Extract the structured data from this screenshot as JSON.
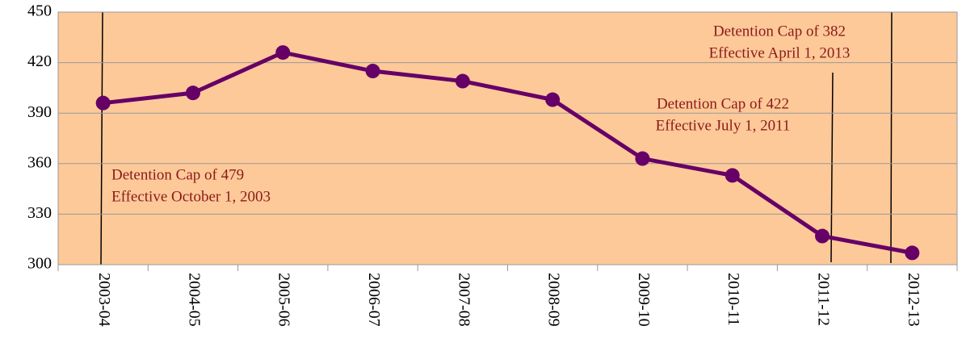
{
  "chart_data": {
    "type": "line",
    "categories": [
      "2003-04",
      "2004-05",
      "2005-06",
      "2006-07",
      "2007-08",
      "2008-09",
      "2009-10",
      "2010-11",
      "2011-12",
      "2012-13"
    ],
    "series": [
      {
        "color": "#660066",
        "values": [
          396,
          402,
          426,
          415,
          409,
          398,
          363,
          353,
          317,
          307
        ]
      }
    ],
    "ylim": [
      300,
      450
    ],
    "yticks": [
      300,
      330,
      360,
      390,
      420,
      450
    ],
    "grid": true,
    "annotations": [
      {
        "lines": [
          "Detention Cap of 479",
          "Effective October 1, 2003"
        ]
      },
      {
        "lines": [
          "Detention Cap of 422",
          "Effective July 1, 2011"
        ]
      },
      {
        "lines": [
          "Detention Cap of 382",
          "Effective April 1, 2013"
        ]
      }
    ]
  }
}
